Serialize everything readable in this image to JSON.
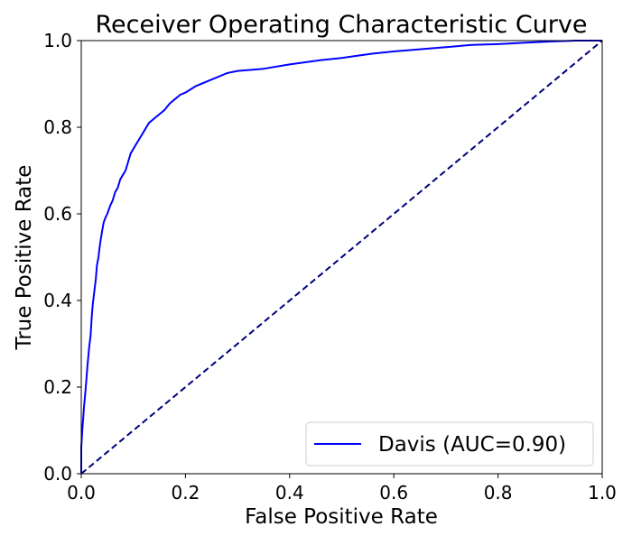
{
  "chart_data": {
    "type": "line",
    "title": "Receiver Operating Characteristic Curve",
    "xlabel": "False Positive Rate",
    "ylabel": "True Positive Rate",
    "xlim": [
      0.0,
      1.0
    ],
    "ylim": [
      0.0,
      1.0
    ],
    "x_ticks": [
      "0.0",
      "0.2",
      "0.4",
      "0.6",
      "0.8",
      "1.0"
    ],
    "y_ticks": [
      "0.0",
      "0.2",
      "0.4",
      "0.6",
      "0.8",
      "1.0"
    ],
    "grid": false,
    "legend_position": "lower-right",
    "series": [
      {
        "name": "Davis (AUC=0.90)",
        "color": "#0000ff",
        "line_style": "solid",
        "x": [
          0.0,
          0.0,
          0.002,
          0.005,
          0.008,
          0.01,
          0.012,
          0.015,
          0.018,
          0.02,
          0.022,
          0.025,
          0.028,
          0.03,
          0.033,
          0.036,
          0.04,
          0.043,
          0.046,
          0.05,
          0.053,
          0.056,
          0.06,
          0.065,
          0.07,
          0.075,
          0.08,
          0.085,
          0.09,
          0.095,
          0.1,
          0.105,
          0.11,
          0.115,
          0.12,
          0.125,
          0.13,
          0.14,
          0.15,
          0.16,
          0.17,
          0.18,
          0.19,
          0.2,
          0.22,
          0.24,
          0.26,
          0.28,
          0.3,
          0.35,
          0.4,
          0.43,
          0.46,
          0.5,
          0.53,
          0.56,
          0.6,
          0.65,
          0.7,
          0.75,
          0.8,
          0.85,
          0.9,
          0.95,
          1.0
        ],
        "y": [
          0.0,
          0.06,
          0.1,
          0.15,
          0.19,
          0.22,
          0.25,
          0.29,
          0.32,
          0.36,
          0.39,
          0.42,
          0.45,
          0.48,
          0.5,
          0.53,
          0.56,
          0.58,
          0.59,
          0.6,
          0.61,
          0.62,
          0.63,
          0.65,
          0.66,
          0.68,
          0.69,
          0.7,
          0.72,
          0.74,
          0.75,
          0.76,
          0.77,
          0.78,
          0.79,
          0.8,
          0.81,
          0.82,
          0.83,
          0.84,
          0.855,
          0.865,
          0.875,
          0.88,
          0.895,
          0.905,
          0.915,
          0.925,
          0.93,
          0.935,
          0.945,
          0.95,
          0.955,
          0.96,
          0.965,
          0.97,
          0.975,
          0.98,
          0.985,
          0.99,
          0.992,
          0.995,
          0.998,
          1.0,
          1.0
        ]
      },
      {
        "color": "#00007f",
        "line_style": "dashed",
        "x": [
          0.0,
          1.0
        ],
        "y": [
          0.0,
          1.0
        ]
      }
    ]
  }
}
